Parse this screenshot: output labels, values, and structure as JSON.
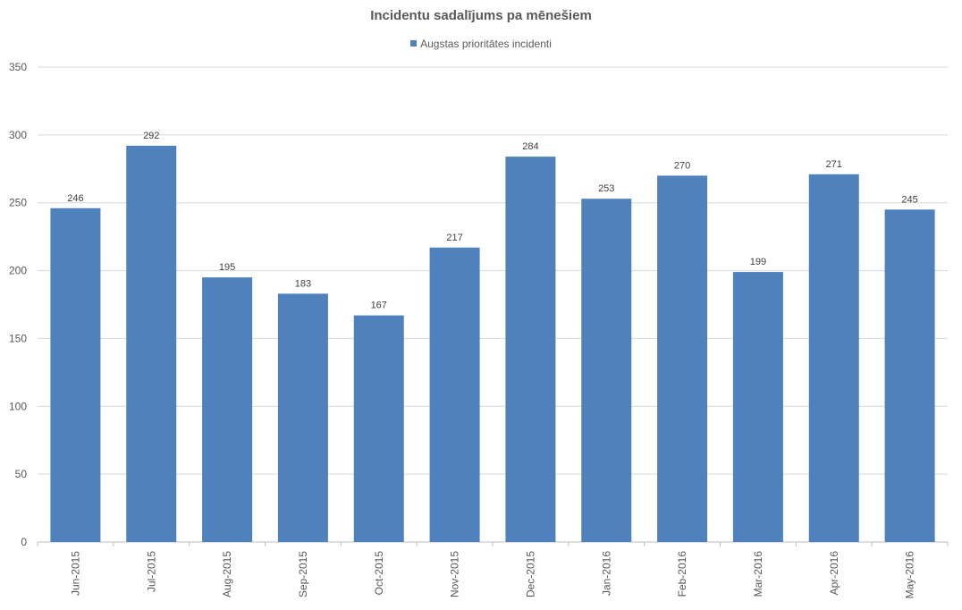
{
  "chart_data": {
    "type": "bar",
    "title": "Incidentu sadalījums pa mēnešiem",
    "categories": [
      "Jun-2015",
      "Jul-2015",
      "Aug-2015",
      "Sep-2015",
      "Oct-2015",
      "Nov-2015",
      "Dec-2015",
      "Jan-2016",
      "Feb-2016",
      "Mar-2016",
      "Apr-2016",
      "May-2016"
    ],
    "series": [
      {
        "name": "Augstas prioritātes incidenti",
        "values": [
          246,
          292,
          195,
          183,
          167,
          217,
          284,
          253,
          270,
          199,
          271,
          245
        ],
        "color": "#4f81bd"
      }
    ],
    "xlabel": "",
    "ylabel": "",
    "ylim": [
      0,
      350
    ],
    "yticks": [
      0,
      50,
      100,
      150,
      200,
      250,
      300,
      350
    ],
    "grid": true,
    "legend_position": "top",
    "colors": {
      "bar": "#4f81bd",
      "grid": "#d9d9d9",
      "text": "#595959"
    }
  }
}
